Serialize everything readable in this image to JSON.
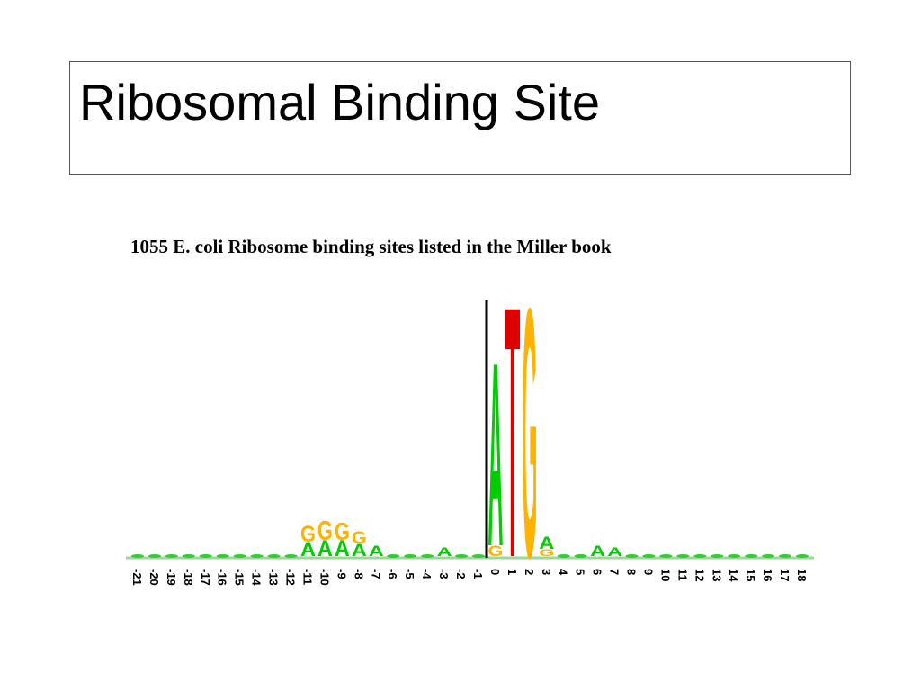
{
  "header": {
    "title": "Ribosomal Binding Site"
  },
  "figure": {
    "caption": "1055 E. coli Ribosome binding sites listed in the Miller book",
    "columns": [
      {
        "label": "-21"
      },
      {
        "label": "-20"
      },
      {
        "label": "-19"
      },
      {
        "label": "-18"
      },
      {
        "label": "-17"
      },
      {
        "label": "-16"
      },
      {
        "label": "-15"
      },
      {
        "label": "-14"
      },
      {
        "label": "-13"
      },
      {
        "label": "-12"
      },
      {
        "label": "-11",
        "letters": [
          "A",
          "G"
        ]
      },
      {
        "label": "-10",
        "letters": [
          "A",
          "G"
        ]
      },
      {
        "label": "-9",
        "letters": [
          "A",
          "G"
        ]
      },
      {
        "label": "-8",
        "letters": [
          "A",
          "G"
        ]
      },
      {
        "label": "-7",
        "letters": [
          "A"
        ]
      },
      {
        "label": "-6"
      },
      {
        "label": "-5"
      },
      {
        "label": "-4"
      },
      {
        "label": "-3",
        "letters": [
          "A"
        ]
      },
      {
        "label": "-2"
      },
      {
        "label": "-1"
      },
      {
        "label": "0",
        "letters": [
          "G",
          "A"
        ]
      },
      {
        "label": "1",
        "letters": [
          "T"
        ]
      },
      {
        "label": "2",
        "letters": [
          "G"
        ]
      },
      {
        "label": "3",
        "letters": [
          "G",
          "A"
        ]
      },
      {
        "label": "4"
      },
      {
        "label": "5"
      },
      {
        "label": "6",
        "letters": [
          "A"
        ]
      },
      {
        "label": "7",
        "letters": [
          "A"
        ]
      },
      {
        "label": "8"
      },
      {
        "label": "9"
      },
      {
        "label": "10"
      },
      {
        "label": "11"
      },
      {
        "label": "12"
      },
      {
        "label": "13"
      },
      {
        "label": "14"
      },
      {
        "label": "15"
      },
      {
        "label": "16"
      },
      {
        "label": "17"
      },
      {
        "label": "18"
      }
    ]
  }
}
